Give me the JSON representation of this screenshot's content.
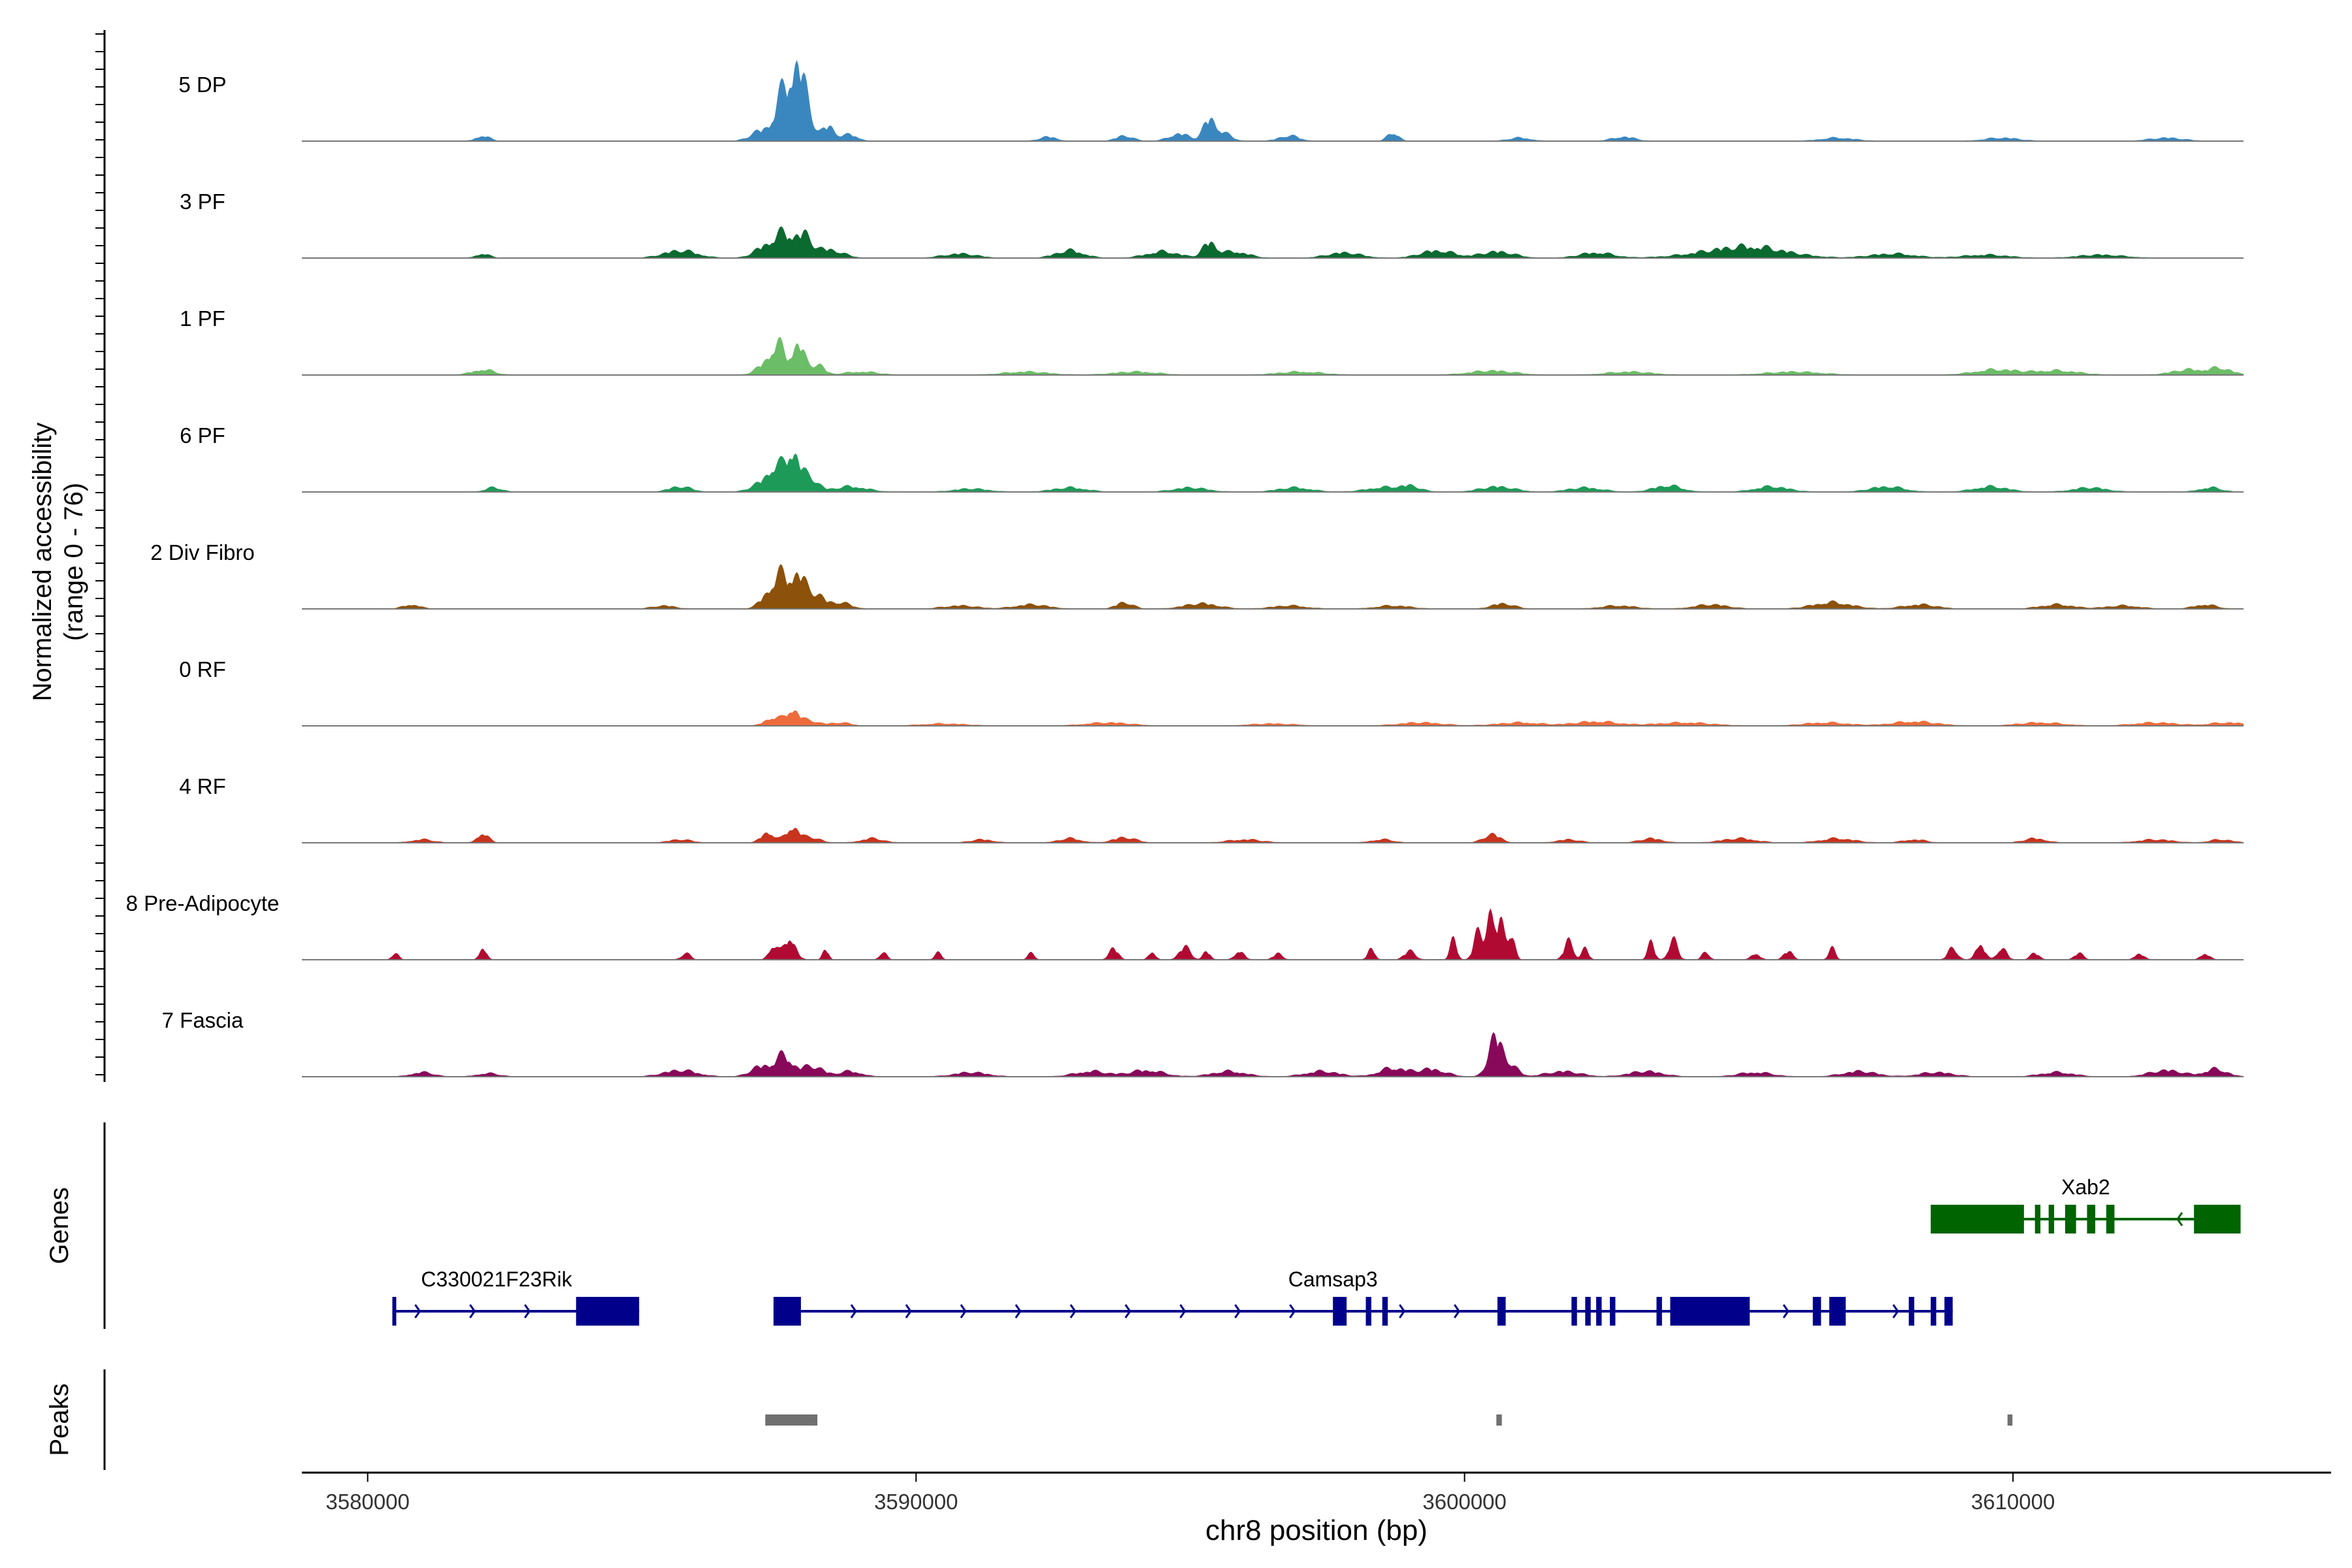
{
  "chart_data": {
    "type": "area",
    "title": "",
    "xlabel": "chr8 position (bp)",
    "ylabel_line1": "Normalized accessibility",
    "ylabel_line2": "(range 0 - 76)",
    "xlim": [
      3578800,
      3615800
    ],
    "ylim": [
      0,
      76
    ],
    "x_ticks": [
      3580000,
      3590000,
      3600000,
      3610000
    ],
    "x_tick_labels": [
      "3580000",
      "3590000",
      "3600000",
      "3610000"
    ],
    "track_labels": {
      "genes": "Genes",
      "peaks": "Peaks"
    },
    "series": [
      {
        "name": "5 DP",
        "color": "#3a87c0",
        "peaks": [
          [
            3582100,
            5,
            120
          ],
          [
            3587200,
            10,
            200
          ],
          [
            3587600,
            45,
            150
          ],
          [
            3587850,
            62,
            110
          ],
          [
            3588050,
            22,
            100
          ],
          [
            3588400,
            14,
            120
          ],
          [
            3588800,
            6,
            140
          ],
          [
            3592400,
            4,
            150
          ],
          [
            3593800,
            5,
            150
          ],
          [
            3594800,
            7,
            180
          ],
          [
            3595350,
            20,
            110
          ],
          [
            3595600,
            7,
            150
          ],
          [
            3596800,
            5,
            180
          ],
          [
            3598700,
            8,
            100
          ],
          [
            3601000,
            3,
            200
          ],
          [
            3602900,
            4,
            200
          ],
          [
            3606800,
            3,
            300
          ],
          [
            3609800,
            3,
            300
          ],
          [
            3612800,
            3,
            300
          ]
        ]
      },
      {
        "name": "3 PF",
        "color": "#0b6a30",
        "peaks": [
          [
            3582100,
            4,
            120
          ],
          [
            3585700,
            7,
            300
          ],
          [
            3587250,
            10,
            200
          ],
          [
            3587600,
            20,
            180
          ],
          [
            3587950,
            18,
            150
          ],
          [
            3588400,
            8,
            250
          ],
          [
            3590800,
            4,
            300
          ],
          [
            3592800,
            7,
            250
          ],
          [
            3594500,
            6,
            300
          ],
          [
            3595350,
            14,
            120
          ],
          [
            3595800,
            6,
            250
          ],
          [
            3597800,
            5,
            300
          ],
          [
            3599500,
            7,
            300
          ],
          [
            3600600,
            6,
            300
          ],
          [
            3602400,
            5,
            300
          ],
          [
            3604800,
            6,
            700
          ],
          [
            3605400,
            6,
            600
          ],
          [
            3607800,
            4,
            400
          ],
          [
            3609500,
            3,
            400
          ],
          [
            3611600,
            3,
            400
          ]
        ]
      },
      {
        "name": "1 PF",
        "color": "#6cbd67",
        "peaks": [
          [
            3582100,
            5,
            200
          ],
          [
            3587300,
            12,
            180
          ],
          [
            3587500,
            22,
            120
          ],
          [
            3587850,
            30,
            110
          ],
          [
            3588200,
            10,
            120
          ],
          [
            3589000,
            3,
            300
          ],
          [
            3592000,
            3,
            400
          ],
          [
            3594000,
            3,
            400
          ],
          [
            3597000,
            3,
            400
          ],
          [
            3600500,
            4,
            400
          ],
          [
            3603000,
            3,
            400
          ],
          [
            3606000,
            3,
            500
          ],
          [
            3609700,
            5,
            400
          ],
          [
            3610800,
            4,
            400
          ],
          [
            3613200,
            5,
            300
          ],
          [
            3613800,
            6,
            200
          ]
        ]
      },
      {
        "name": "6 PF",
        "color": "#1e9a58",
        "peaks": [
          [
            3582300,
            4,
            150
          ],
          [
            3585700,
            5,
            200
          ],
          [
            3587200,
            8,
            200
          ],
          [
            3587450,
            20,
            140
          ],
          [
            3587750,
            36,
            120
          ],
          [
            3588050,
            14,
            150
          ],
          [
            3588800,
            5,
            300
          ],
          [
            3591000,
            3,
            300
          ],
          [
            3592800,
            4,
            300
          ],
          [
            3595000,
            4,
            300
          ],
          [
            3596900,
            4,
            300
          ],
          [
            3598500,
            4,
            300
          ],
          [
            3599000,
            5,
            200
          ],
          [
            3600600,
            5,
            300
          ],
          [
            3602200,
            4,
            300
          ],
          [
            3603700,
            6,
            250
          ],
          [
            3605600,
            5,
            300
          ],
          [
            3607700,
            5,
            300
          ],
          [
            3609600,
            5,
            300
          ],
          [
            3611400,
            4,
            300
          ],
          [
            3613600,
            4,
            200
          ]
        ]
      },
      {
        "name": "2 Div Fibro",
        "color": "#8c510a",
        "peaks": [
          [
            3580800,
            4,
            150
          ],
          [
            3585400,
            3,
            200
          ],
          [
            3587300,
            12,
            150
          ],
          [
            3587550,
            28,
            140
          ],
          [
            3587850,
            30,
            120
          ],
          [
            3588150,
            14,
            150
          ],
          [
            3588600,
            6,
            200
          ],
          [
            3590800,
            3,
            300
          ],
          [
            3592100,
            4,
            300
          ],
          [
            3593800,
            6,
            150
          ],
          [
            3595200,
            5,
            300
          ],
          [
            3596800,
            3,
            300
          ],
          [
            3598700,
            3,
            300
          ],
          [
            3600700,
            5,
            200
          ],
          [
            3602800,
            3,
            300
          ],
          [
            3604500,
            4,
            300
          ],
          [
            3606700,
            6,
            350
          ],
          [
            3608300,
            4,
            300
          ],
          [
            3610800,
            4,
            300
          ],
          [
            3612000,
            3,
            300
          ],
          [
            3613500,
            4,
            200
          ]
        ]
      },
      {
        "name": "0 RF",
        "color": "#ee6b3b",
        "peaks": [
          [
            3587400,
            8,
            150
          ],
          [
            3587750,
            15,
            110
          ],
          [
            3588050,
            5,
            150
          ],
          [
            3588600,
            3,
            200
          ],
          [
            3590500,
            2,
            400
          ],
          [
            3593500,
            3,
            400
          ],
          [
            3596500,
            2,
            400
          ],
          [
            3599200,
            3,
            400
          ],
          [
            3601000,
            3,
            400
          ],
          [
            3602400,
            4,
            400
          ],
          [
            3604000,
            3,
            500
          ],
          [
            3606600,
            3,
            400
          ],
          [
            3608200,
            4,
            400
          ],
          [
            3610500,
            3,
            400
          ],
          [
            3612600,
            3,
            400
          ],
          [
            3613900,
            3,
            300
          ]
        ]
      },
      {
        "name": "4 RF",
        "color": "#c8341d",
        "peaks": [
          [
            3581000,
            3,
            200
          ],
          [
            3582100,
            9,
            100
          ],
          [
            3585700,
            3,
            200
          ],
          [
            3587300,
            10,
            120
          ],
          [
            3587750,
            15,
            120
          ],
          [
            3588100,
            5,
            150
          ],
          [
            3589200,
            4,
            200
          ],
          [
            3591200,
            3,
            200
          ],
          [
            3592800,
            4,
            200
          ],
          [
            3593800,
            5,
            200
          ],
          [
            3596000,
            3,
            300
          ],
          [
            3598500,
            3,
            200
          ],
          [
            3600500,
            8,
            150
          ],
          [
            3601900,
            3,
            200
          ],
          [
            3603400,
            4,
            200
          ],
          [
            3605000,
            4,
            300
          ],
          [
            3606800,
            4,
            300
          ],
          [
            3608200,
            3,
            200
          ],
          [
            3610400,
            4,
            200
          ],
          [
            3612600,
            3,
            300
          ],
          [
            3613800,
            3,
            200
          ]
        ]
      },
      {
        "name": "8 Pre-Adipocyte",
        "color": "#b10a32",
        "peaks": [
          [
            3580500,
            6,
            60
          ],
          [
            3582100,
            12,
            60
          ],
          [
            3585800,
            6,
            80
          ],
          [
            3587400,
            14,
            80
          ],
          [
            3587700,
            22,
            100
          ],
          [
            3588350,
            10,
            50
          ],
          [
            3589400,
            8,
            60
          ],
          [
            3590400,
            6,
            60
          ],
          [
            3592100,
            6,
            60
          ],
          [
            3593600,
            11,
            80
          ],
          [
            3594300,
            8,
            60
          ],
          [
            3594900,
            12,
            100
          ],
          [
            3595300,
            8,
            60
          ],
          [
            3595900,
            9,
            80
          ],
          [
            3596600,
            6,
            80
          ],
          [
            3598300,
            12,
            60
          ],
          [
            3599000,
            8,
            100
          ],
          [
            3599800,
            18,
            60
          ],
          [
            3600250,
            25,
            80
          ],
          [
            3600450,
            44,
            60
          ],
          [
            3600650,
            38,
            80
          ],
          [
            3600850,
            25,
            60
          ],
          [
            3601900,
            18,
            80
          ],
          [
            3602200,
            10,
            60
          ],
          [
            3603400,
            16,
            60
          ],
          [
            3603800,
            18,
            80
          ],
          [
            3604400,
            8,
            60
          ],
          [
            3605300,
            6,
            80
          ],
          [
            3605900,
            8,
            80
          ],
          [
            3606700,
            10,
            60
          ],
          [
            3608900,
            12,
            80
          ],
          [
            3609400,
            16,
            80
          ],
          [
            3609800,
            12,
            80
          ],
          [
            3610400,
            6,
            80
          ],
          [
            3611200,
            6,
            80
          ],
          [
            3612300,
            6,
            80
          ],
          [
            3613500,
            6,
            80
          ]
        ]
      },
      {
        "name": "7 Fascia",
        "color": "#88085a",
        "peaks": [
          [
            3581000,
            4,
            200
          ],
          [
            3582200,
            3,
            200
          ],
          [
            3585700,
            6,
            300
          ],
          [
            3587200,
            10,
            200
          ],
          [
            3587600,
            18,
            150
          ],
          [
            3588100,
            10,
            200
          ],
          [
            3588800,
            5,
            200
          ],
          [
            3591000,
            4,
            300
          ],
          [
            3593200,
            5,
            300
          ],
          [
            3594200,
            6,
            300
          ],
          [
            3595700,
            5,
            300
          ],
          [
            3597400,
            5,
            300
          ],
          [
            3598700,
            8,
            250
          ],
          [
            3599400,
            7,
            250
          ],
          [
            3600550,
            35,
            120
          ],
          [
            3600800,
            12,
            150
          ],
          [
            3601800,
            5,
            300
          ],
          [
            3603300,
            5,
            300
          ],
          [
            3605300,
            4,
            300
          ],
          [
            3607200,
            5,
            300
          ],
          [
            3608600,
            4,
            300
          ],
          [
            3610800,
            4,
            300
          ],
          [
            3612800,
            6,
            300
          ],
          [
            3613700,
            7,
            200
          ]
        ]
      }
    ],
    "genes": [
      {
        "name": "C330021F23Rik",
        "strand": "+",
        "start": 3580450,
        "end": 3584950,
        "exons": [
          [
            3580450,
            3580500
          ],
          [
            3583800,
            3584950
          ]
        ]
      },
      {
        "name": "Camsap3",
        "strand": "+",
        "start": 3587400,
        "end": 3608900,
        "exons": [
          [
            3587400,
            3587900
          ],
          [
            3597600,
            3597850
          ],
          [
            3598200,
            3598300
          ],
          [
            3598500,
            3598600
          ],
          [
            3600600,
            3600750
          ],
          [
            3601950,
            3602050
          ],
          [
            3602200,
            3602300
          ],
          [
            3602400,
            3602500
          ],
          [
            3602650,
            3602750
          ],
          [
            3603500,
            3603600
          ],
          [
            3603750,
            3605200
          ],
          [
            3606350,
            3606500
          ],
          [
            3606650,
            3606950
          ],
          [
            3608100,
            3608200
          ],
          [
            3608500,
            3608600
          ],
          [
            3608750,
            3608900
          ]
        ]
      },
      {
        "name": "Xab2",
        "strand": "-",
        "start": 3608500,
        "end": 3614150,
        "exons": [
          [
            3608500,
            3610200
          ],
          [
            3610400,
            3610500
          ],
          [
            3610650,
            3610750
          ],
          [
            3610950,
            3611150
          ],
          [
            3611350,
            3611500
          ],
          [
            3611700,
            3611850
          ],
          [
            3613300,
            3614150
          ]
        ]
      }
    ],
    "peak_regions": [
      [
        3587250,
        3588200
      ],
      [
        3600580,
        3600680
      ],
      [
        3609900,
        3609990
      ]
    ]
  }
}
